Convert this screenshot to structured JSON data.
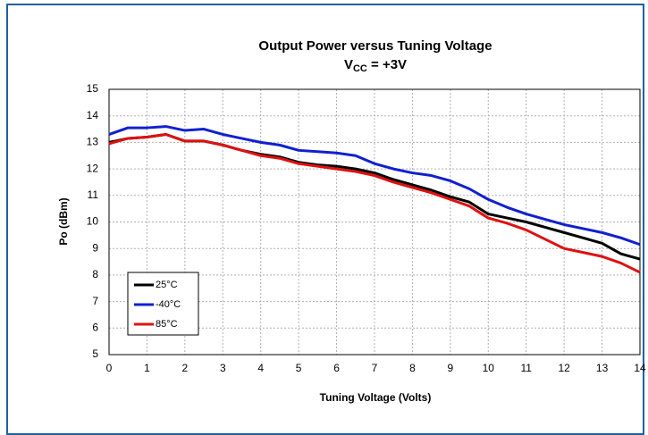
{
  "chart_data": {
    "type": "line",
    "title": "Output Power versus Tuning Voltage",
    "subtitle": [
      "V",
      "CC",
      " = +3V"
    ],
    "x_label": "Tuning Voltage (Volts)",
    "y_label": "Po (dBm)",
    "x": [
      0,
      0.5,
      1,
      1.5,
      2,
      2.5,
      3,
      3.5,
      4,
      4.5,
      5,
      5.5,
      6,
      6.5,
      7,
      7.5,
      8,
      8.5,
      9,
      9.5,
      10,
      10.5,
      11,
      11.5,
      12,
      12.5,
      13,
      13.5,
      14
    ],
    "series": [
      {
        "name": "25°C",
        "color": "#000000",
        "values": [
          13.0,
          13.15,
          13.2,
          13.3,
          13.05,
          13.05,
          12.9,
          12.7,
          12.55,
          12.45,
          12.25,
          12.15,
          12.1,
          12.0,
          11.85,
          11.6,
          11.4,
          11.2,
          10.95,
          10.75,
          10.3,
          10.15,
          10.0,
          9.8,
          9.6,
          9.4,
          9.2,
          8.8,
          8.6
        ]
      },
      {
        "name": "-40°C",
        "color": "#1020d0",
        "values": [
          13.3,
          13.55,
          13.55,
          13.6,
          13.45,
          13.5,
          13.3,
          13.15,
          13.0,
          12.9,
          12.7,
          12.65,
          12.6,
          12.5,
          12.2,
          12.0,
          11.85,
          11.75,
          11.55,
          11.25,
          10.85,
          10.55,
          10.3,
          10.1,
          9.9,
          9.75,
          9.6,
          9.4,
          9.15
        ]
      },
      {
        "name": "85°C",
        "color": "#e01010",
        "values": [
          12.95,
          13.15,
          13.2,
          13.3,
          13.05,
          13.05,
          12.9,
          12.7,
          12.5,
          12.4,
          12.2,
          12.1,
          12.0,
          11.9,
          11.75,
          11.5,
          11.3,
          11.1,
          10.85,
          10.6,
          10.15,
          9.95,
          9.7,
          9.35,
          9.0,
          8.85,
          8.7,
          8.45,
          8.1
        ]
      }
    ],
    "xlim": [
      0,
      14
    ],
    "xticks": [
      0,
      1,
      2,
      3,
      4,
      5,
      6,
      7,
      8,
      9,
      10,
      11,
      12,
      13,
      14
    ],
    "ylim": [
      5,
      15
    ],
    "yticks": [
      5,
      6,
      7,
      8,
      9,
      10,
      11,
      12,
      13,
      14,
      15
    ],
    "grid": true,
    "legend": "lower-left"
  }
}
